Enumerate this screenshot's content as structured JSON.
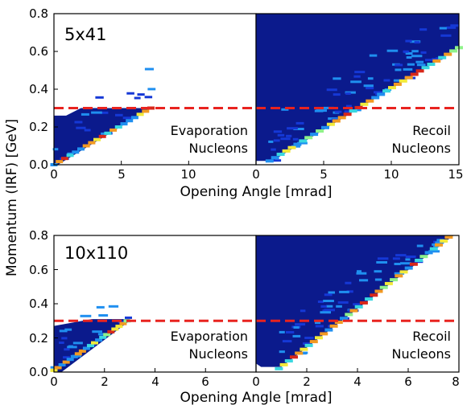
{
  "ylabel": "Momentum (IRF) [GeV]",
  "xlabel": "Opening Angle [mrad]",
  "threshold_color": "#e8231f",
  "colormap": [
    "#0b1a8c",
    "#1538d6",
    "#1f8ff0",
    "#39d7e0",
    "#8ff28a",
    "#f2ea3a",
    "#f29a22",
    "#d8281a"
  ],
  "chart_data": [
    {
      "type": "heatmap",
      "beam_label": "5x41",
      "y_ticks": [
        "0.0",
        "0.2",
        "0.4",
        "0.6",
        "0.8"
      ],
      "ylim": [
        0,
        0.8
      ],
      "threshold_y": 0.3,
      "panels": [
        {
          "label_line1": "Evaporation",
          "label_line2": "Nucleons",
          "xlim": [
            0,
            15
          ],
          "x_ticks": [
            "0",
            "5",
            "10"
          ],
          "x_tick_values": [
            0,
            5,
            10
          ],
          "outline": [
            [
              0.3,
              0.0
            ],
            [
              7.0,
              0.29
            ],
            [
              7.3,
              0.3
            ],
            [
              2.0,
              0.3
            ],
            [
              0.9,
              0.26
            ],
            [
              0.0,
              0.26
            ],
            [
              0.0,
              0.0
            ]
          ],
          "ridge": {
            "x0": 0.0,
            "y0": 0.0,
            "x1": 7.2,
            "y1": 0.3
          }
        },
        {
          "label_line1": "Recoil",
          "label_line2": "Nucleons",
          "xlim": [
            0,
            15
          ],
          "x_ticks": [
            "0",
            "5",
            "10",
            "15"
          ],
          "x_tick_values": [
            0,
            5,
            10,
            15
          ],
          "outline": [
            [
              0.0,
              0.02
            ],
            [
              0.0,
              0.8
            ],
            [
              15.0,
              0.8
            ],
            [
              15.0,
              0.62
            ],
            [
              1.2,
              0.02
            ]
          ],
          "ridge": {
            "x0": 1.0,
            "y0": 0.02,
            "x1": 15.0,
            "y1": 0.62
          }
        }
      ]
    },
    {
      "type": "heatmap",
      "beam_label": "10x110",
      "y_ticks": [
        "0.0",
        "0.2",
        "0.4",
        "0.6",
        "0.8"
      ],
      "ylim": [
        0,
        0.8
      ],
      "threshold_y": 0.3,
      "panels": [
        {
          "label_line1": "Evaporation",
          "label_line2": "Nucleons",
          "xlim": [
            0,
            8
          ],
          "x_ticks": [
            "0",
            "2",
            "4",
            "6"
          ],
          "x_tick_values": [
            0,
            2,
            4,
            6
          ],
          "outline": [
            [
              0.0,
              0.0
            ],
            [
              0.3,
              0.0
            ],
            [
              3.0,
              0.3
            ],
            [
              3.0,
              0.31
            ],
            [
              1.5,
              0.31
            ],
            [
              0.0,
              0.27
            ]
          ],
          "ridge": {
            "x0": 0.0,
            "y0": 0.01,
            "x1": 2.9,
            "y1": 0.3
          }
        },
        {
          "label_line1": "Recoil",
          "label_line2": "Nucleons",
          "xlim": [
            0,
            8
          ],
          "x_ticks": [
            "0",
            "2",
            "4",
            "6",
            "8"
          ],
          "x_tick_values": [
            0,
            2,
            4,
            6,
            8
          ],
          "outline": [
            [
              0.0,
              0.05
            ],
            [
              0.0,
              0.8
            ],
            [
              7.8,
              0.8
            ],
            [
              7.7,
              0.79
            ],
            [
              1.0,
              0.03
            ],
            [
              0.2,
              0.03
            ]
          ],
          "ridge": {
            "x0": 0.9,
            "y0": 0.02,
            "x1": 7.6,
            "y1": 0.79
          }
        }
      ]
    }
  ]
}
